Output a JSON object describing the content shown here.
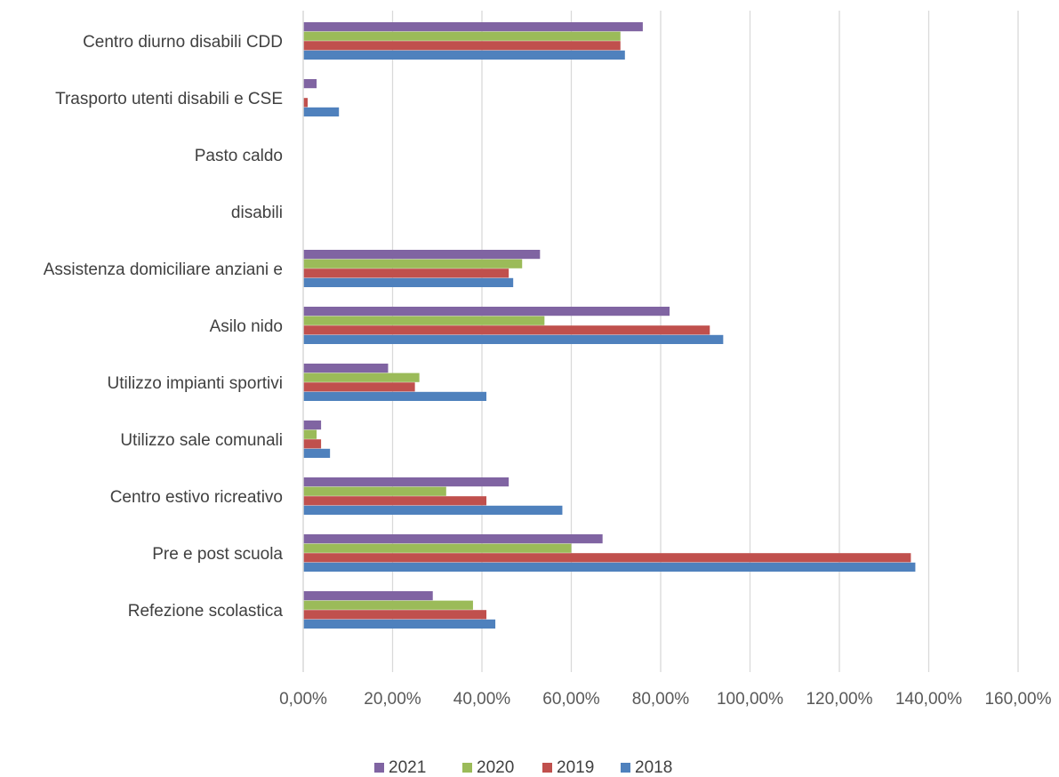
{
  "chart_data": {
    "type": "bar",
    "orientation": "horizontal",
    "categories": [
      "Centro diurno disabili CDD",
      "Trasporto utenti disabili e CSE",
      "Pasto caldo",
      "disabili",
      "Assistenza domiciliare anziani e",
      "Asilo nido",
      "Utilizzo impianti sportivi",
      "Utilizzo sale comunali",
      "Centro estivo ricreativo",
      "Pre e post scuola",
      "Refezione scolastica"
    ],
    "series": [
      {
        "name": "2021",
        "color": "#8064A2",
        "values": [
          76,
          3,
          0,
          0,
          53,
          82,
          19,
          4,
          46,
          67,
          29
        ]
      },
      {
        "name": "2020",
        "color": "#9BBB59",
        "values": [
          71,
          0,
          0,
          0,
          49,
          54,
          26,
          3,
          32,
          60,
          38
        ]
      },
      {
        "name": "2019",
        "color": "#C0504D",
        "values": [
          71,
          1,
          0,
          0,
          46,
          91,
          25,
          4,
          41,
          136,
          41
        ]
      },
      {
        "name": "2018",
        "color": "#4F81BD",
        "values": [
          72,
          8,
          0,
          0,
          47,
          94,
          41,
          6,
          58,
          137,
          43
        ]
      }
    ],
    "xlim": [
      0,
      160
    ],
    "x_ticks": [
      0,
      20,
      40,
      60,
      80,
      100,
      120,
      140,
      160
    ],
    "x_tick_labels": [
      "0,00%",
      "20,00%",
      "40,00%",
      "60,00%",
      "80,00%",
      "100,00%",
      "120,00%",
      "140,00%",
      "160,00%"
    ],
    "title": "",
    "xlabel": "",
    "ylabel": "",
    "grid": "vertical",
    "legend_position": "bottom",
    "legend_order": [
      "2021",
      "2020",
      "2019",
      "2018"
    ],
    "gridline_color": "#D9D9D9"
  }
}
